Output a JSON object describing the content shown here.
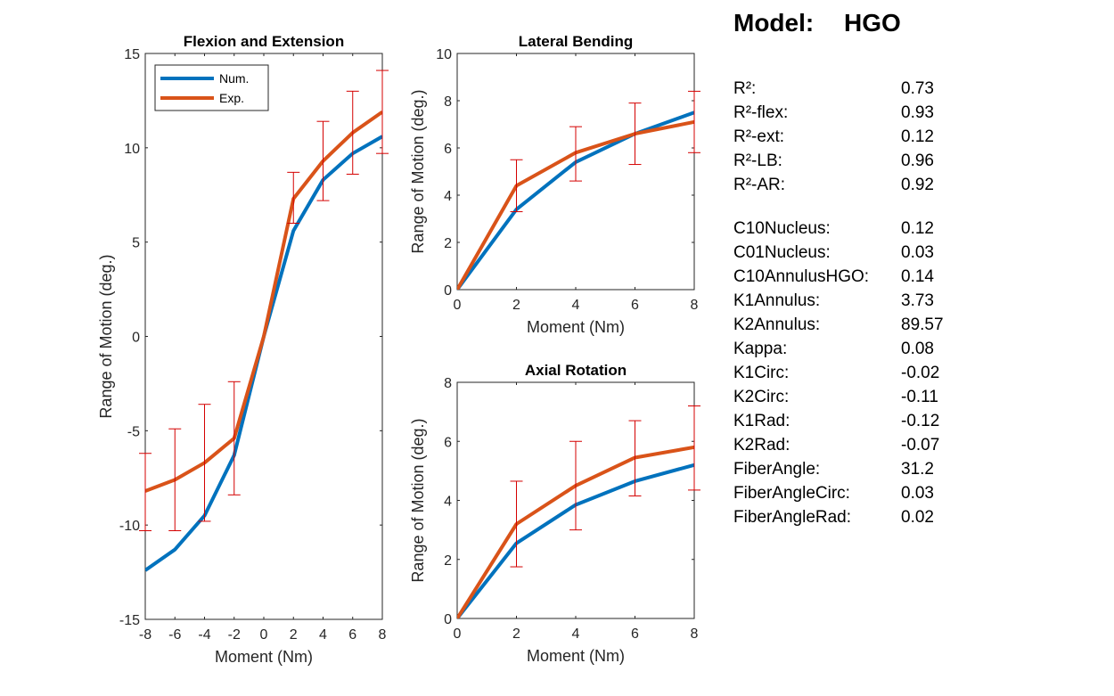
{
  "model_heading": {
    "label": "Model:",
    "value": "HGO"
  },
  "params": {
    "fit": [
      {
        "label": "R²:",
        "value": "0.73"
      },
      {
        "label": "R²-flex:",
        "value": "0.93"
      },
      {
        "label": "R²-ext:",
        "value": "0.12"
      },
      {
        "label": "R²-LB:",
        "value": "0.96"
      },
      {
        "label": "R²-AR:",
        "value": "0.92"
      }
    ],
    "material": [
      {
        "label": "C10Nucleus:",
        "value": "0.12"
      },
      {
        "label": "C01Nucleus:",
        "value": "0.03"
      },
      {
        "label": "C10AnnulusHGO:",
        "value": "0.14"
      },
      {
        "label": "K1Annulus:",
        "value": "3.73"
      },
      {
        "label": "K2Annulus:",
        "value": "89.57"
      },
      {
        "label": "Kappa:",
        "value": "0.08"
      },
      {
        "label": "K1Circ:",
        "value": "-0.02"
      },
      {
        "label": "K2Circ:",
        "value": "-0.11"
      },
      {
        "label": "K1Rad:",
        "value": "-0.12"
      },
      {
        "label": "K2Rad:",
        "value": "-0.07"
      },
      {
        "label": "FiberAngle:",
        "value": "31.2"
      },
      {
        "label": "FiberAngleCirc:",
        "value": "0.03"
      },
      {
        "label": "FiberAngleRad:",
        "value": "0.02"
      }
    ]
  },
  "colors": {
    "num": "#0072BD",
    "exp": "#D95319",
    "errorbar": "#D40000",
    "axis": "#262626"
  },
  "chart_data": [
    {
      "type": "line",
      "title": "Flexion and Extension",
      "xlabel": "Moment (Nm)",
      "ylabel": "Range of Motion (deg.)",
      "xlim": [
        -8,
        8
      ],
      "ylim": [
        -15,
        15
      ],
      "xticks": [
        -8,
        -6,
        -4,
        -2,
        0,
        2,
        4,
        6,
        8
      ],
      "yticks": [
        -15,
        -10,
        -5,
        0,
        5,
        10,
        15
      ],
      "x": [
        -8,
        -6,
        -4,
        -2,
        0,
        2,
        4,
        6,
        8
      ],
      "legend": {
        "position": "top-left",
        "entries": [
          "Num.",
          "Exp."
        ]
      },
      "series": [
        {
          "name": "Num.",
          "values": [
            -12.4,
            -11.3,
            -9.5,
            -6.3,
            0,
            5.6,
            8.3,
            9.7,
            10.6
          ]
        },
        {
          "name": "Exp.",
          "values": [
            -8.2,
            -7.6,
            -6.7,
            -5.4,
            0,
            7.3,
            9.3,
            10.8,
            11.9
          ]
        }
      ],
      "error_bars": {
        "series": "Exp.",
        "lower": [
          -10.3,
          -10.3,
          -9.8,
          -8.4,
          0,
          6.0,
          7.2,
          8.6,
          9.7
        ],
        "upper": [
          -6.2,
          -4.9,
          -3.6,
          -2.4,
          0,
          8.7,
          11.4,
          13.0,
          14.1
        ]
      }
    },
    {
      "type": "line",
      "title": "Lateral Bending",
      "xlabel": "Moment (Nm)",
      "ylabel": "Range of Motion (deg.)",
      "xlim": [
        0,
        8
      ],
      "ylim": [
        0,
        10
      ],
      "xticks": [
        0,
        2,
        4,
        6,
        8
      ],
      "yticks": [
        0,
        2,
        4,
        6,
        8,
        10
      ],
      "x": [
        0,
        2,
        4,
        6,
        8
      ],
      "series": [
        {
          "name": "Num.",
          "values": [
            0,
            3.4,
            5.4,
            6.6,
            7.5
          ]
        },
        {
          "name": "Exp.",
          "values": [
            0,
            4.4,
            5.8,
            6.6,
            7.1
          ]
        }
      ],
      "error_bars": {
        "series": "Exp.",
        "lower": [
          0,
          3.3,
          4.6,
          5.3,
          5.8
        ],
        "upper": [
          0,
          5.5,
          6.9,
          7.9,
          8.4
        ]
      }
    },
    {
      "type": "line",
      "title": "Axial Rotation",
      "xlabel": "Moment (Nm)",
      "ylabel": "Range of Motion (deg.)",
      "xlim": [
        0,
        8
      ],
      "ylim": [
        0,
        8
      ],
      "xticks": [
        0,
        2,
        4,
        6,
        8
      ],
      "yticks": [
        0,
        2,
        4,
        6,
        8
      ],
      "x": [
        0,
        2,
        4,
        6,
        8
      ],
      "series": [
        {
          "name": "Num.",
          "values": [
            0,
            2.55,
            3.85,
            4.65,
            5.2
          ]
        },
        {
          "name": "Exp.",
          "values": [
            0,
            3.2,
            4.5,
            5.45,
            5.8
          ]
        }
      ],
      "error_bars": {
        "series": "Exp.",
        "lower": [
          0,
          1.75,
          3.0,
          4.15,
          4.35
        ],
        "upper": [
          0,
          4.65,
          6.0,
          6.7,
          7.2
        ]
      }
    }
  ]
}
